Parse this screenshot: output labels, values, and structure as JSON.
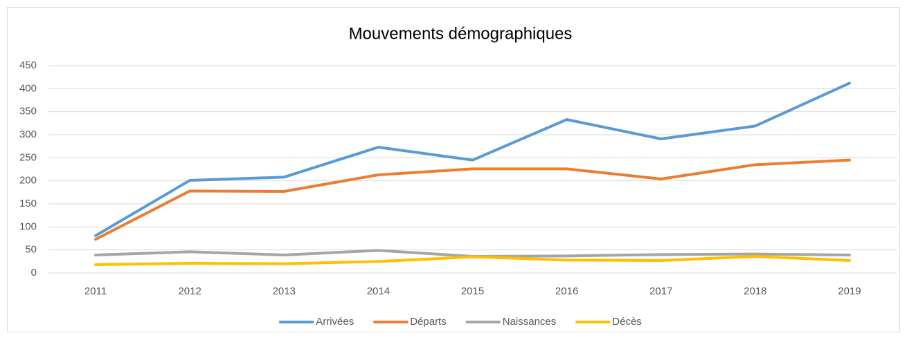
{
  "chart_data": {
    "type": "line",
    "title": "Mouvements démographiques",
    "categories": [
      "2011",
      "2012",
      "2013",
      "2014",
      "2015",
      "2016",
      "2017",
      "2018",
      "2019"
    ],
    "series": [
      {
        "name": "Arrivées",
        "color": "#5b9bd5",
        "values": [
          81,
          201,
          208,
          273,
          245,
          333,
          291,
          319,
          412
        ]
      },
      {
        "name": "Départs",
        "color": "#ed7d31",
        "values": [
          73,
          178,
          177,
          213,
          226,
          226,
          204,
          235,
          245
        ]
      },
      {
        "name": "Naissances",
        "color": "#a5a5a5",
        "values": [
          39,
          46,
          39,
          49,
          36,
          37,
          40,
          41,
          39
        ]
      },
      {
        "name": "Décès",
        "color": "#ffc000",
        "values": [
          18,
          21,
          20,
          25,
          35,
          28,
          27,
          36,
          27
        ]
      }
    ],
    "ylim": [
      0,
      450
    ],
    "yticks": [
      0,
      50,
      100,
      150,
      200,
      250,
      300,
      350,
      400,
      450
    ],
    "grid": true,
    "legend": "bottom"
  }
}
